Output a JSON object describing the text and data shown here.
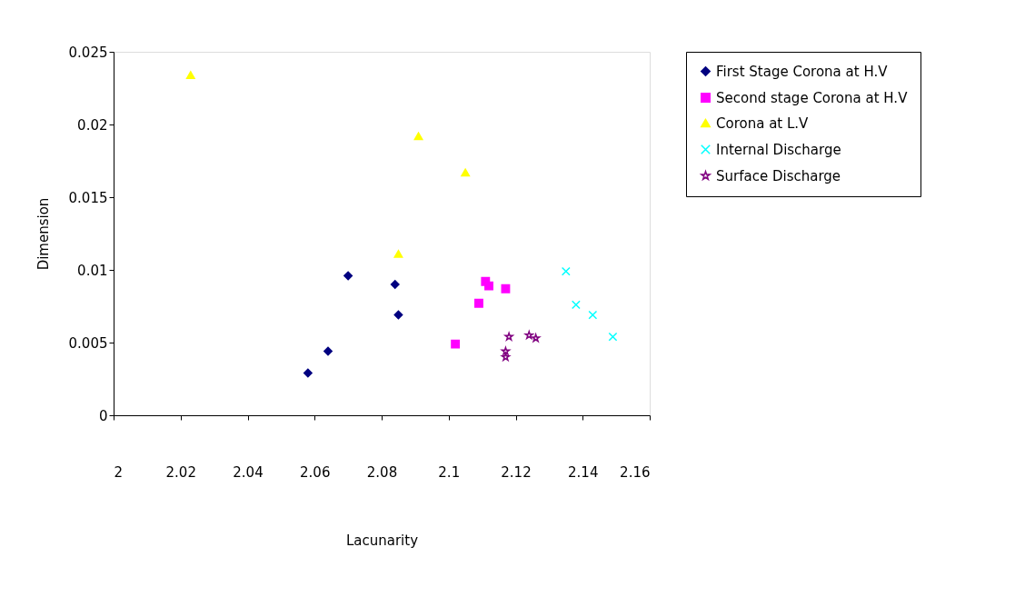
{
  "chart_data": {
    "type": "scatter",
    "xlabel": "Lacunarity",
    "ylabel": "Dimension",
    "xlim": [
      2,
      2.16
    ],
    "xticks": [
      2,
      2.02,
      2.04,
      2.06,
      2.08,
      2.1,
      2.12,
      2.14,
      2.16
    ],
    "ylim": [
      0,
      0.025
    ],
    "yticks": [
      0,
      0.005,
      0.01,
      0.015,
      0.02,
      0.025
    ],
    "legend": "right",
    "grid": false,
    "series": [
      {
        "name": "First Stage Corona at H.V",
        "color": "#000080",
        "marker": "diamond",
        "x": [
          2.058,
          2.064,
          2.07,
          2.084,
          2.085
        ],
        "values": [
          0.0029,
          0.0044,
          0.0096,
          0.009,
          0.0069
        ]
      },
      {
        "name": "Second stage Corona at H.V",
        "color": "#ff00ff",
        "marker": "square",
        "x": [
          2.102,
          2.109,
          2.111,
          2.112,
          2.117
        ],
        "values": [
          0.0049,
          0.0077,
          0.0092,
          0.0089,
          0.0087
        ]
      },
      {
        "name": "Corona at L.V",
        "color": "#ffff00",
        "marker": "triangle",
        "x": [
          2.023,
          2.091,
          2.105,
          2.085
        ],
        "values": [
          0.0234,
          0.0192,
          0.0167,
          0.0111
        ]
      },
      {
        "name": "Internal Discharge",
        "color": "#00ffff",
        "marker": "cross",
        "x": [
          2.135,
          2.138,
          2.143,
          2.149
        ],
        "values": [
          0.0099,
          0.0076,
          0.0069,
          0.0054
        ]
      },
      {
        "name": "Surface Discharge",
        "color": "#800080",
        "marker": "star",
        "x": [
          2.118,
          2.117,
          2.117,
          2.124,
          2.126
        ],
        "values": [
          0.0054,
          0.0044,
          0.004,
          0.0055,
          0.0053
        ]
      }
    ]
  }
}
